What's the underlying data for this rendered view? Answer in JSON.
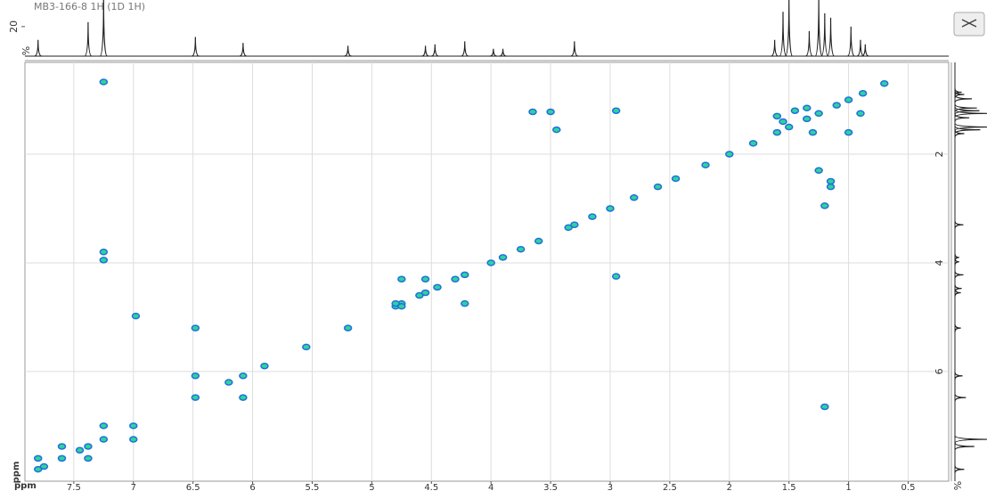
{
  "chart_data": {
    "type": "nmr2d",
    "title": "MB3-166-8 1H (1D 1H)",
    "xlabel": "ppm",
    "ylabel": "ppm",
    "xlim": [
      7.91,
      0.16
    ],
    "ylim": [
      0.31,
      8.02
    ],
    "xticks": [
      7.5,
      7,
      6.5,
      6,
      5.5,
      5,
      4.5,
      4,
      3.5,
      3,
      2.5,
      2,
      1.5,
      1,
      0.5
    ],
    "yticks": [
      2,
      4,
      6
    ],
    "grid": true,
    "color": "#1f6fe0",
    "center_color": "#2fd39a",
    "x": [
      7.8,
      7.75,
      7.6,
      7.45,
      7.38,
      7.25,
      7.0,
      6.48,
      6.2,
      6.08,
      5.9,
      5.55,
      5.2,
      4.8,
      4.75,
      4.6,
      4.55,
      4.45,
      4.3,
      4.22,
      4.0,
      3.9,
      3.75,
      3.6,
      3.35,
      3.3,
      3.15,
      3.0,
      2.8,
      2.6,
      2.45,
      2.2,
      2.0,
      1.8,
      1.6,
      1.5,
      1.35,
      1.25,
      1.1,
      1.0,
      0.88,
      0.7,
      7.25,
      7.25,
      7.25,
      6.98,
      6.48,
      6.48,
      6.08,
      4.8,
      4.75,
      4.75,
      4.22,
      2.95,
      2.95,
      1.2,
      1.15,
      1.15,
      3.5,
      3.65,
      3.45,
      1.6,
      1.3,
      1.2,
      1.45,
      1.55,
      1.35,
      0.9,
      7.38,
      7.6,
      7.8,
      7.0,
      7.25,
      1.25,
      1.0,
      4.55
    ],
    "y": [
      7.8,
      7.75,
      7.6,
      7.45,
      7.38,
      7.25,
      7.0,
      6.48,
      6.2,
      6.08,
      5.9,
      5.55,
      5.2,
      4.8,
      4.75,
      4.6,
      4.55,
      4.45,
      4.3,
      4.22,
      4.0,
      3.9,
      3.75,
      3.6,
      3.35,
      3.3,
      3.15,
      3.0,
      2.8,
      2.6,
      2.45,
      2.2,
      2.0,
      1.8,
      1.6,
      1.5,
      1.35,
      1.25,
      1.1,
      1.0,
      0.88,
      0.7,
      0.67,
      3.8,
      3.95,
      4.98,
      5.2,
      6.08,
      6.48,
      4.75,
      4.8,
      4.3,
      4.75,
      1.2,
      4.25,
      2.95,
      2.6,
      2.5,
      1.22,
      1.22,
      1.55,
      1.3,
      1.6,
      6.65,
      1.2,
      1.4,
      1.15,
      1.25,
      7.6,
      7.38,
      7.6,
      7.25,
      7.0,
      2.3,
      1.6,
      4.3
    ],
    "projection": {
      "ylabel": "%",
      "ylim": [
        0,
        38
      ],
      "yticks": [
        20
      ],
      "x": [
        7.8,
        7.38,
        7.25,
        6.48,
        6.08,
        5.2,
        4.55,
        4.47,
        4.22,
        3.98,
        3.9,
        3.3,
        1.62,
        1.55,
        1.5,
        1.33,
        1.25,
        1.2,
        1.15,
        0.98,
        0.9,
        0.86
      ],
      "values": [
        11,
        23,
        40,
        13,
        9,
        7,
        7,
        8,
        10,
        5,
        5,
        10,
        11,
        30,
        40,
        17,
        40,
        29,
        26,
        20,
        11,
        8
      ]
    }
  }
}
